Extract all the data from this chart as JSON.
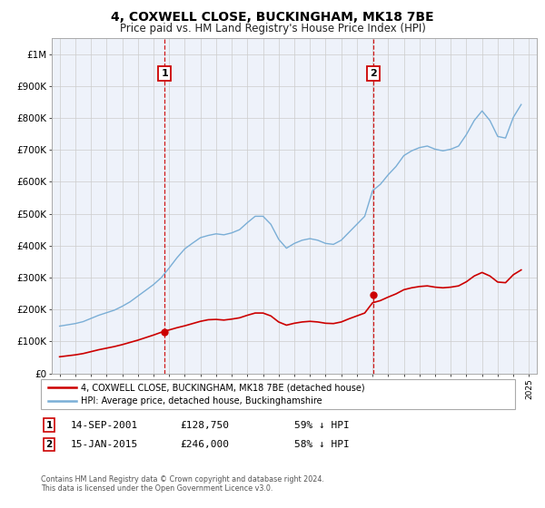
{
  "title": "4, COXWELL CLOSE, BUCKINGHAM, MK18 7BE",
  "subtitle": "Price paid vs. HM Land Registry's House Price Index (HPI)",
  "legend_label_red": "4, COXWELL CLOSE, BUCKINGHAM, MK18 7BE (detached house)",
  "legend_label_blue": "HPI: Average price, detached house, Buckinghamshire",
  "marker1_x": 2001.71,
  "marker1_price": 128750,
  "marker1_label": "14-SEP-2001",
  "marker1_price_str": "£128,750",
  "marker1_pct": "59% ↓ HPI",
  "marker2_x": 2015.04,
  "marker2_price": 246000,
  "marker2_label": "15-JAN-2015",
  "marker2_price_str": "£246,000",
  "marker2_pct": "58% ↓ HPI",
  "footer1": "Contains HM Land Registry data © Crown copyright and database right 2024.",
  "footer2": "This data is licensed under the Open Government Licence v3.0.",
  "red_color": "#cc0000",
  "blue_color": "#7aaed6",
  "bg_color": "#eef2fa",
  "grid_color": "#cccccc",
  "ylim_max": 1050000,
  "xlim_min": 1994.5,
  "xlim_max": 2025.5,
  "hpi_years": [
    1995,
    1995.5,
    1996,
    1996.5,
    1997,
    1997.5,
    1998,
    1998.5,
    1999,
    1999.5,
    2000,
    2000.5,
    2001,
    2001.5,
    2002,
    2002.5,
    2003,
    2003.5,
    2004,
    2004.5,
    2005,
    2005.5,
    2006,
    2006.5,
    2007,
    2007.5,
    2008,
    2008.5,
    2009,
    2009.5,
    2010,
    2010.5,
    2011,
    2011.5,
    2012,
    2012.5,
    2013,
    2013.5,
    2014,
    2014.5,
    2015,
    2015.5,
    2016,
    2016.5,
    2017,
    2017.5,
    2018,
    2018.5,
    2019,
    2019.5,
    2020,
    2020.5,
    2021,
    2021.5,
    2022,
    2022.5,
    2023,
    2023.5,
    2024,
    2024.5
  ],
  "hpi_values": [
    148000,
    152000,
    156000,
    162000,
    172000,
    182000,
    190000,
    198000,
    210000,
    224000,
    242000,
    260000,
    278000,
    300000,
    330000,
    362000,
    390000,
    408000,
    425000,
    432000,
    437000,
    434000,
    440000,
    450000,
    472000,
    492000,
    492000,
    467000,
    420000,
    392000,
    407000,
    417000,
    422000,
    417000,
    407000,
    404000,
    417000,
    442000,
    467000,
    492000,
    572000,
    592000,
    622000,
    648000,
    682000,
    697000,
    707000,
    712000,
    702000,
    697000,
    702000,
    712000,
    748000,
    792000,
    822000,
    792000,
    742000,
    737000,
    802000,
    842000
  ],
  "red_years": [
    1995,
    1995.5,
    1996,
    1996.5,
    1997,
    1997.5,
    1998,
    1998.5,
    1999,
    1999.5,
    2000,
    2000.5,
    2001,
    2001.5,
    2002,
    2002.5,
    2003,
    2003.5,
    2004,
    2004.5,
    2005,
    2005.5,
    2006,
    2006.5,
    2007,
    2007.5,
    2008,
    2008.5,
    2009,
    2009.5,
    2010,
    2010.5,
    2011,
    2011.5,
    2012,
    2012.5,
    2013,
    2013.5,
    2014,
    2014.5,
    2015,
    2015.5,
    2016,
    2016.5,
    2017,
    2017.5,
    2018,
    2018.5,
    2019,
    2019.5,
    2020,
    2020.5,
    2021,
    2021.5,
    2022,
    2022.5,
    2023,
    2023.5,
    2024,
    2024.5
  ],
  "red_values": [
    52000,
    55000,
    58000,
    62000,
    68000,
    74000,
    79000,
    84000,
    90000,
    97000,
    104000,
    112000,
    120000,
    128750,
    136000,
    143000,
    149000,
    156000,
    163000,
    168000,
    169000,
    167000,
    170000,
    174000,
    182000,
    189000,
    189000,
    180000,
    161000,
    151000,
    157000,
    161000,
    163000,
    161000,
    157000,
    156000,
    161000,
    171000,
    180000,
    189000,
    221000,
    228000,
    239000,
    249000,
    262000,
    268000,
    272000,
    274000,
    270000,
    268000,
    270000,
    274000,
    287000,
    305000,
    316000,
    305000,
    286000,
    284000,
    309000,
    324000
  ]
}
